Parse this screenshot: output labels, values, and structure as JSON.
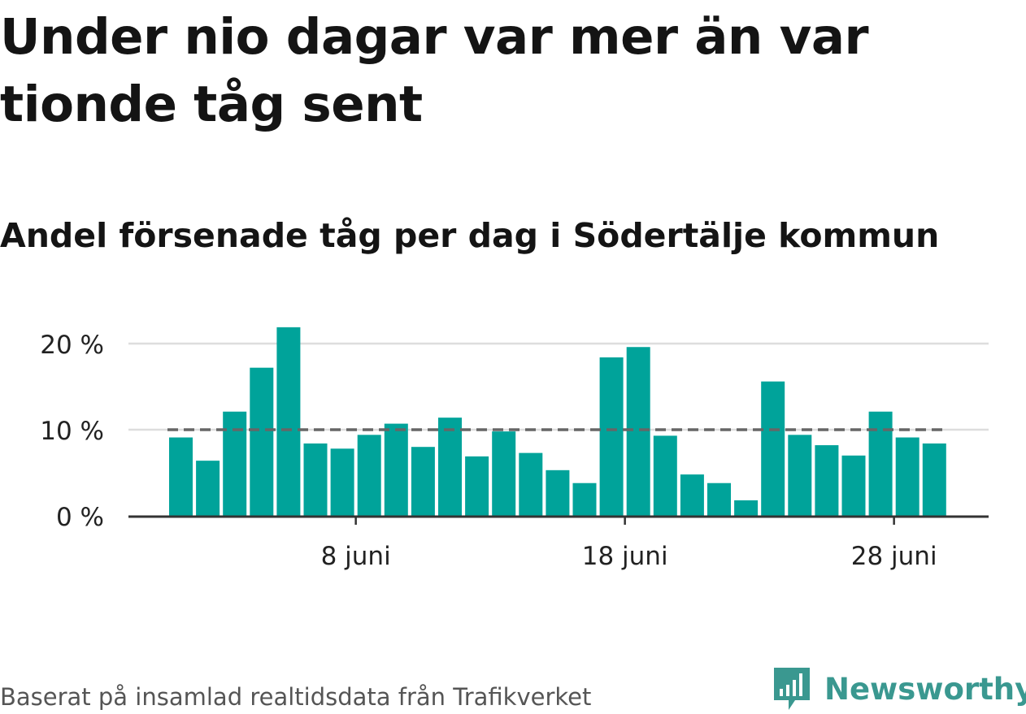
{
  "title": "Under nio dagar var mer än var tionde tåg sent",
  "subtitle": "Andel försenade tåg per dag i Södertälje kommun",
  "source": "Baserat på insamlad realtidsdata från Trafikverket",
  "brand": {
    "name": "Newsworthy",
    "color": "#3a9890"
  },
  "colors": {
    "bar": "#00a39a",
    "reference_line": "#666666",
    "grid": "#dddddd",
    "axis": "#333333"
  },
  "chart_data": {
    "type": "bar",
    "title": "Andel försenade tåg per dag i Södertälje kommun",
    "xlabel": "",
    "ylabel": "",
    "x": [
      "2023-06-01",
      "2023-06-02",
      "2023-06-03",
      "2023-06-04",
      "2023-06-05",
      "2023-06-06",
      "2023-06-07",
      "2023-06-08",
      "2023-06-09",
      "2023-06-10",
      "2023-06-11",
      "2023-06-12",
      "2023-06-13",
      "2023-06-14",
      "2023-06-15",
      "2023-06-16",
      "2023-06-17",
      "2023-06-18",
      "2023-06-19",
      "2023-06-20",
      "2023-06-21",
      "2023-06-22",
      "2023-06-23",
      "2023-06-24",
      "2023-06-25",
      "2023-06-26",
      "2023-06-27",
      "2023-06-28",
      "2023-06-29"
    ],
    "values": [
      9.1,
      6.4,
      12.1,
      17.2,
      21.9,
      8.4,
      7.8,
      9.4,
      10.7,
      8.0,
      11.4,
      6.9,
      9.8,
      7.3,
      5.3,
      3.8,
      18.4,
      19.6,
      9.3,
      4.8,
      3.8,
      1.8,
      15.6,
      9.4,
      8.2,
      7.0,
      12.1,
      9.1,
      8.4
    ],
    "reference_line": {
      "value": 10,
      "style": "dashed"
    },
    "y_ticks": [
      0,
      10,
      20
    ],
    "y_tick_labels": [
      "0 %",
      "10 %",
      "20 %"
    ],
    "ylim": [
      0,
      22.5
    ],
    "x_tick_dates": [
      "2023-06-08",
      "2023-06-18",
      "2023-06-28"
    ],
    "x_tick_labels": [
      "8 juni",
      "18 juni",
      "28 juni"
    ],
    "grid": true,
    "legend": "none"
  }
}
